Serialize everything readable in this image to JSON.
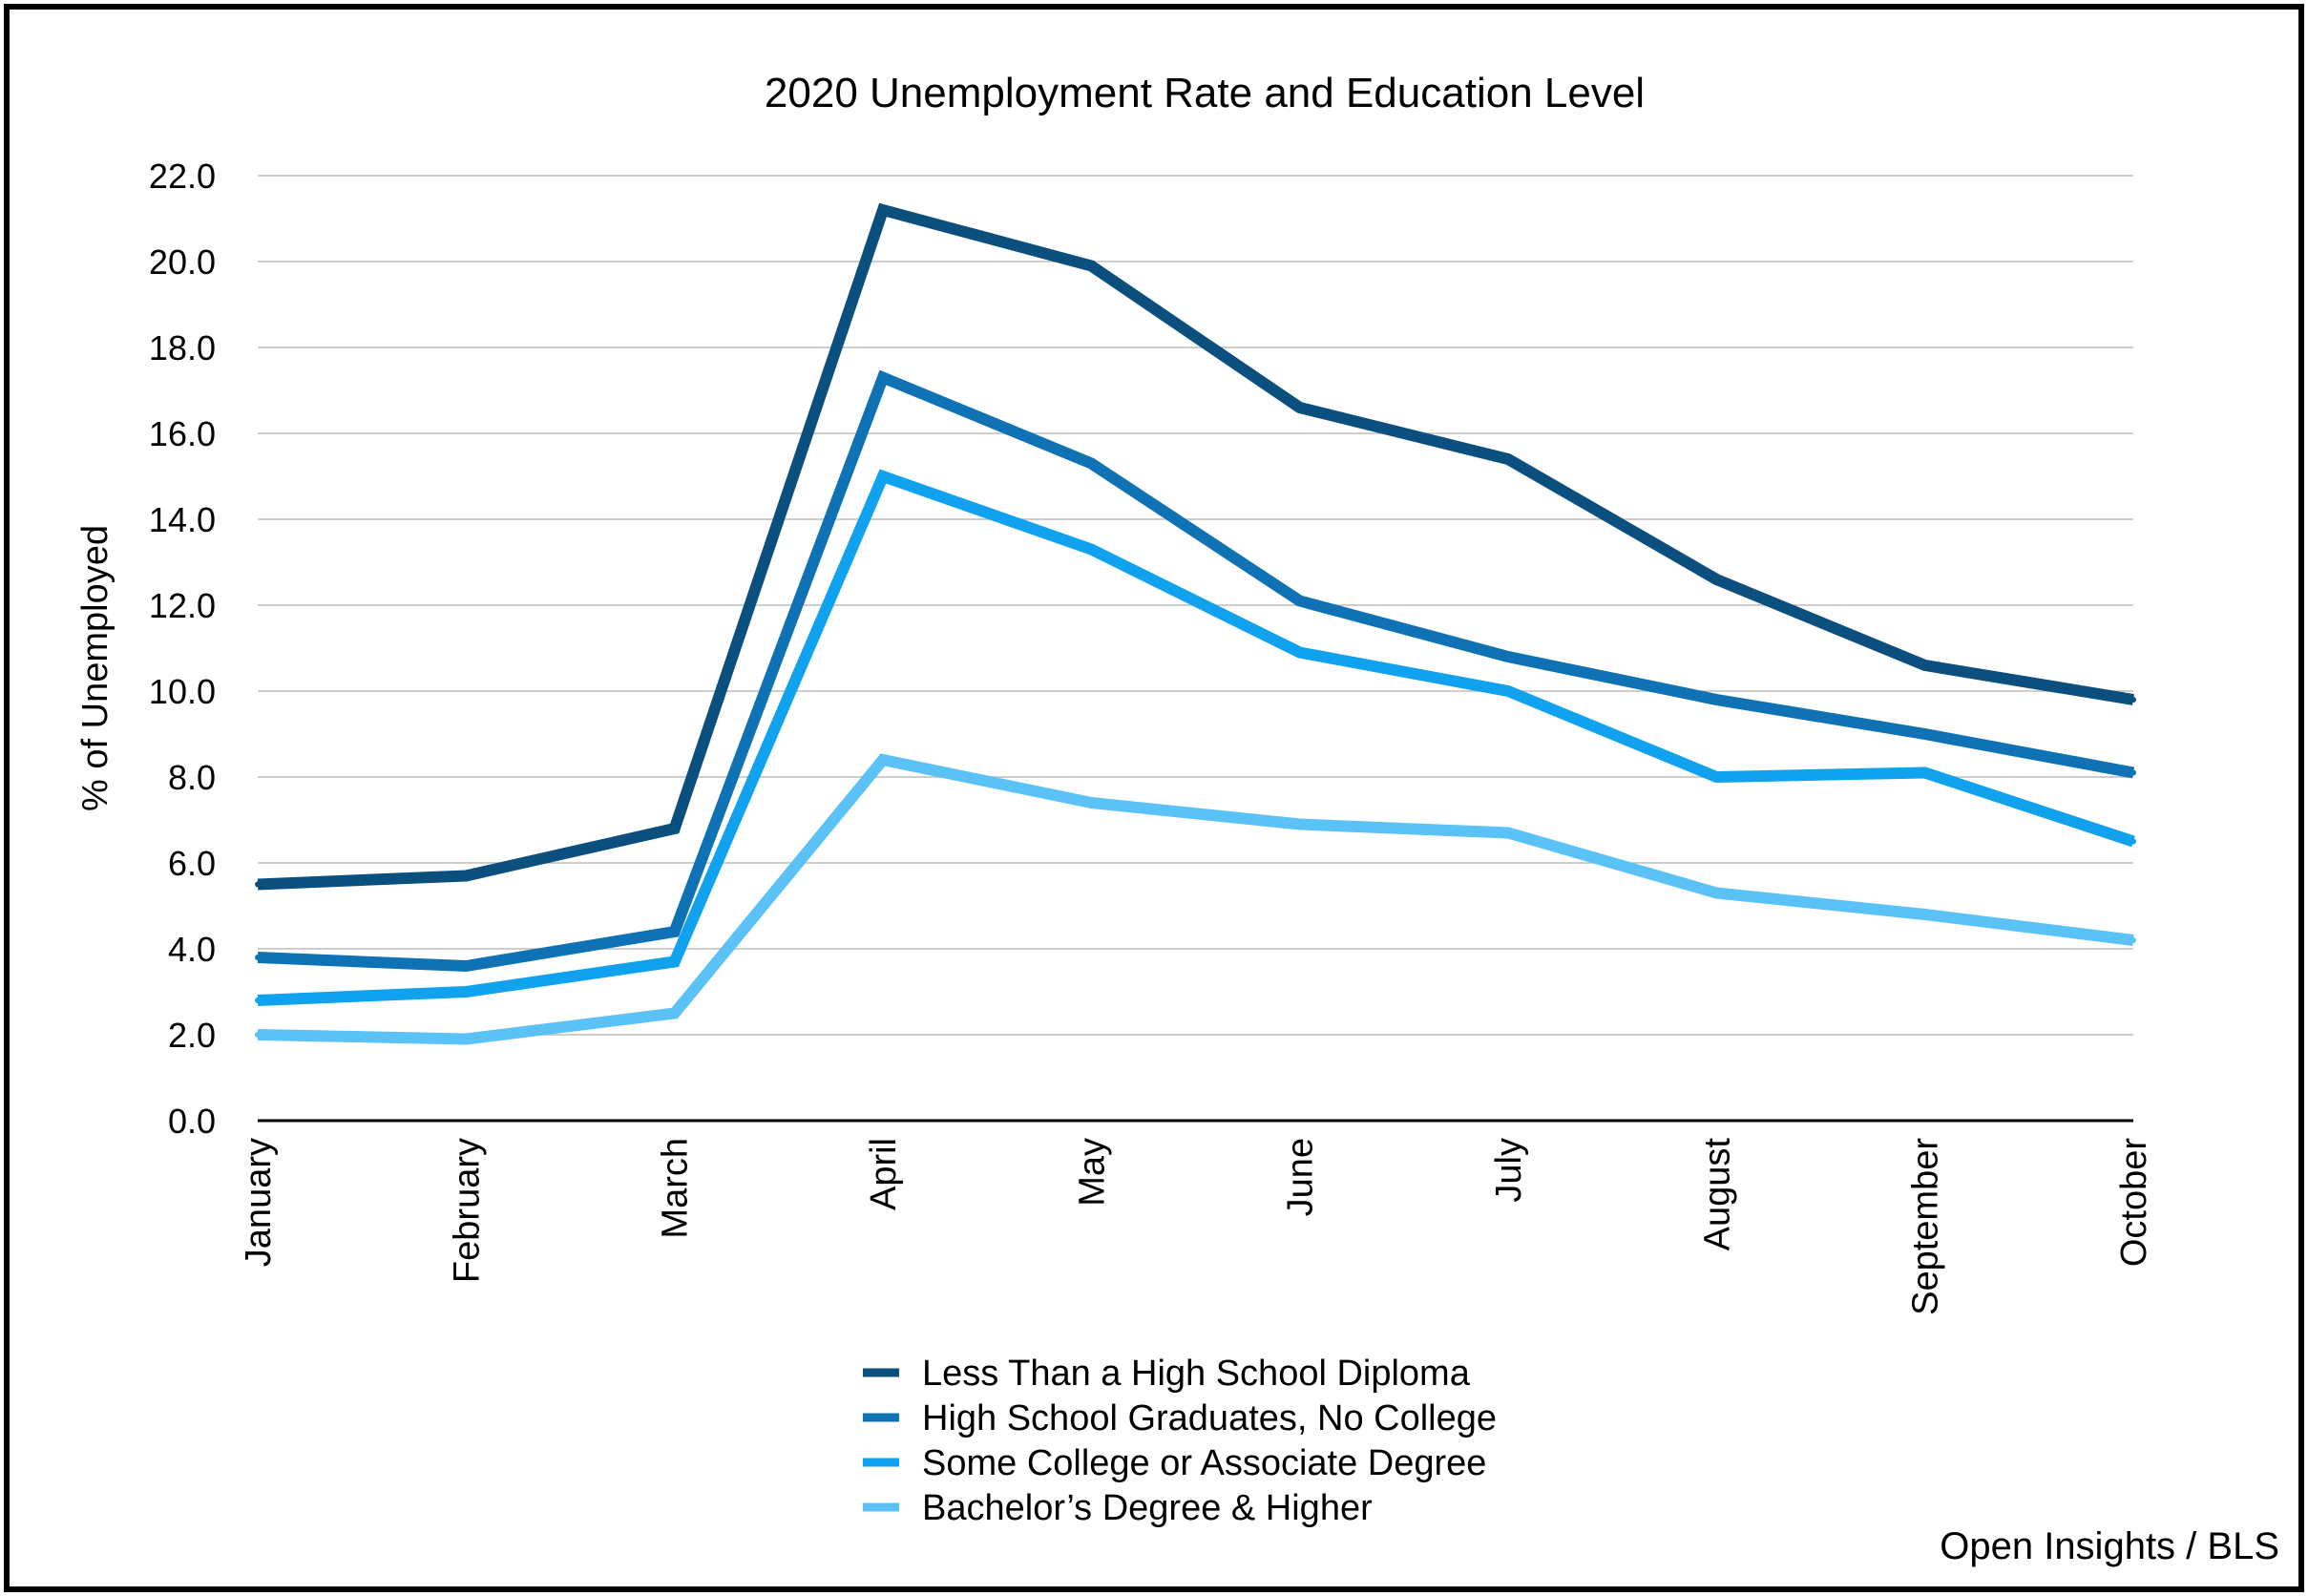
{
  "chart_data": {
    "type": "line",
    "title": "2020 Unemployment Rate and Education Level",
    "xlabel": "",
    "ylabel": "% of Unemployed",
    "ylim": [
      0,
      22
    ],
    "yticks": [
      "0.0",
      "2.0",
      "4.0",
      "6.0",
      "8.0",
      "10.0",
      "12.0",
      "14.0",
      "16.0",
      "18.0",
      "20.0",
      "22.0"
    ],
    "grid": true,
    "legend_position": "bottom-center",
    "categories": [
      "January",
      "February",
      "March",
      "April",
      "May",
      "June",
      "July",
      "August",
      "September",
      "October"
    ],
    "series": [
      {
        "name": "Less Than a High School Diploma",
        "color": "#0b4f7f",
        "values": [
          5.5,
          5.7,
          6.8,
          21.2,
          19.9,
          16.6,
          15.4,
          12.6,
          10.6,
          9.8
        ]
      },
      {
        "name": "High School Graduates, No College",
        "color": "#0f72b4",
        "values": [
          3.8,
          3.6,
          4.4,
          17.3,
          15.3,
          12.1,
          10.8,
          9.8,
          9.0,
          8.1
        ]
      },
      {
        "name": "Some College or Associate Degree",
        "color": "#10a2ef",
        "values": [
          2.8,
          3.0,
          3.7,
          15.0,
          13.3,
          10.9,
          10.0,
          8.0,
          8.1,
          6.5
        ]
      },
      {
        "name": "Bachelor’s Degree & Higher",
        "color": "#5ac2f7",
        "values": [
          2.0,
          1.9,
          2.5,
          8.4,
          7.4,
          6.9,
          6.7,
          5.3,
          4.8,
          4.2
        ]
      }
    ]
  },
  "source": "Open Insights / BLS"
}
